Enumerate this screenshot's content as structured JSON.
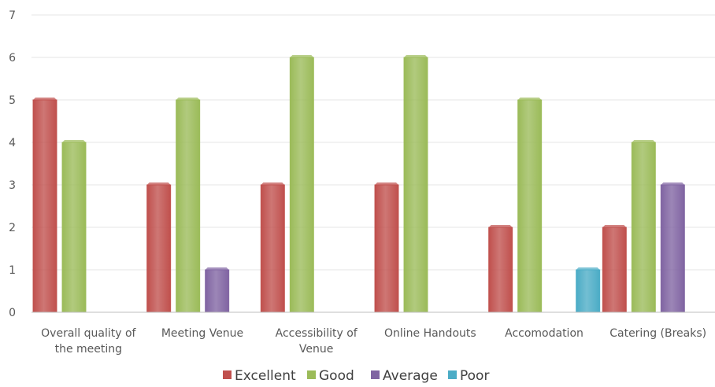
{
  "chart_data": {
    "type": "bar",
    "categories": [
      [
        "Overall quality of",
        "the meeting"
      ],
      [
        "Meeting Venue"
      ],
      [
        "Accessibility of",
        "Venue"
      ],
      [
        "Online Handouts"
      ],
      [
        "Accomodation"
      ],
      [
        "Catering (Breaks)"
      ]
    ],
    "series": [
      {
        "name": "Excellent",
        "color": "#c0504d",
        "values": [
          5,
          3,
          3,
          3,
          2,
          2
        ]
      },
      {
        "name": "Good",
        "color": "#9bbb59",
        "values": [
          4,
          5,
          6,
          6,
          5,
          4
        ]
      },
      {
        "name": "Average",
        "color": "#8064a2",
        "values": [
          0,
          1,
          0,
          0,
          0,
          3
        ]
      },
      {
        "name": "Poor",
        "color": "#4bacc6",
        "values": [
          0,
          0,
          0,
          0,
          1,
          0
        ]
      }
    ],
    "ylim": [
      0,
      7
    ],
    "yticks": [
      0,
      1,
      2,
      3,
      4,
      5,
      6,
      7
    ],
    "grid": true,
    "legend_position": "bottom",
    "title": "",
    "xlabel": "",
    "ylabel": ""
  }
}
